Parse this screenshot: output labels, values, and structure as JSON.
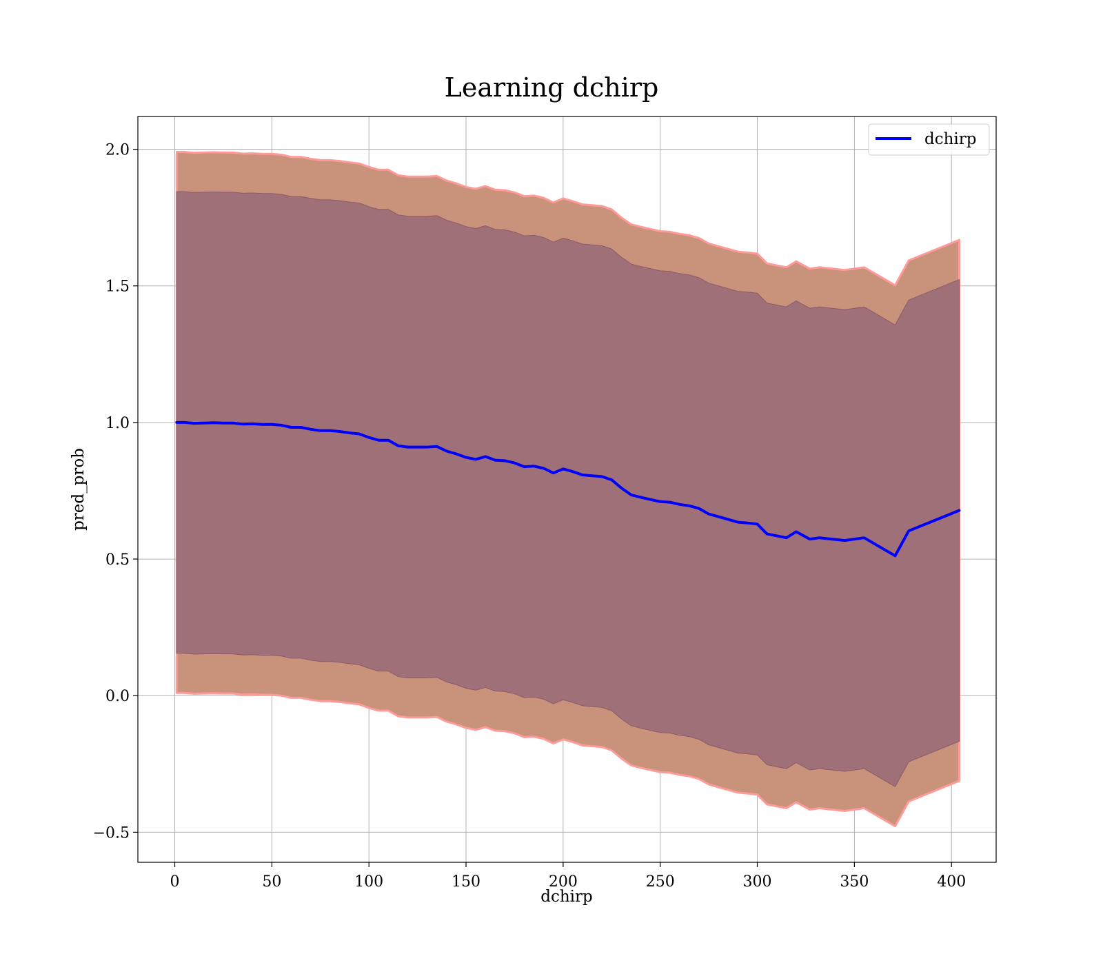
{
  "chart_data": {
    "type": "line",
    "title": "Learning dchirp",
    "xlabel": "dchirp",
    "ylabel": "pred_prob",
    "xlim": [
      -19,
      423
    ],
    "ylim": [
      -0.61,
      2.12
    ],
    "xticks": [
      0,
      50,
      100,
      150,
      200,
      250,
      300,
      350,
      400
    ],
    "yticks": [
      -0.5,
      0.0,
      0.5,
      1.0,
      1.5,
      2.0
    ],
    "xtick_labels": [
      "0",
      "50",
      "100",
      "150",
      "200",
      "250",
      "300",
      "350",
      "400"
    ],
    "ytick_labels": [
      "−0.5",
      "0.0",
      "0.5",
      "1.0",
      "1.5",
      "2.0"
    ],
    "grid": true,
    "legend_position": "top-right",
    "colors": {
      "line": "#0000ff",
      "outer_band": "#c8937a",
      "outer_band_edge": "#ff9a9a",
      "inner_band": "#a07078",
      "inner_band_edge": "#8a5a6a",
      "grid": "#b0b0b0"
    },
    "series": [
      {
        "name": "dchirp",
        "x": [
          1,
          5,
          10,
          15,
          20,
          25,
          30,
          35,
          40,
          45,
          50,
          55,
          60,
          65,
          70,
          75,
          80,
          85,
          90,
          95,
          100,
          105,
          110,
          115,
          120,
          125,
          130,
          135,
          140,
          145,
          150,
          155,
          160,
          165,
          170,
          175,
          180,
          185,
          190,
          195,
          200,
          205,
          210,
          215,
          220,
          225,
          230,
          235,
          240,
          245,
          250,
          255,
          260,
          265,
          270,
          275,
          280,
          285,
          290,
          295,
          300,
          305,
          315,
          320,
          327,
          332,
          345,
          355,
          371,
          378,
          404
        ],
        "y": [
          1.0,
          1.0,
          0.997,
          0.998,
          0.999,
          0.998,
          0.998,
          0.994,
          0.995,
          0.993,
          0.993,
          0.99,
          0.982,
          0.982,
          0.975,
          0.97,
          0.97,
          0.967,
          0.962,
          0.958,
          0.945,
          0.935,
          0.935,
          0.915,
          0.91,
          0.91,
          0.91,
          0.912,
          0.895,
          0.885,
          0.872,
          0.865,
          0.875,
          0.862,
          0.86,
          0.852,
          0.838,
          0.84,
          0.832,
          0.815,
          0.83,
          0.82,
          0.808,
          0.805,
          0.802,
          0.79,
          0.76,
          0.735,
          0.726,
          0.718,
          0.71,
          0.708,
          0.7,
          0.695,
          0.685,
          0.665,
          0.655,
          0.645,
          0.635,
          0.632,
          0.628,
          0.592,
          0.578,
          0.6,
          0.573,
          0.578,
          0.568,
          0.578,
          0.512,
          0.603,
          0.678
        ]
      }
    ],
    "band_outer_halfwidth": 0.99,
    "band_inner_halfwidth": 0.845
  },
  "legend": {
    "label": "dchirp"
  }
}
